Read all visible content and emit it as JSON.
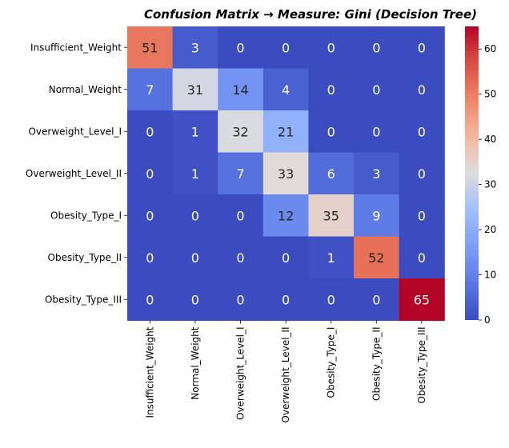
{
  "chart_data": {
    "type": "heatmap",
    "title": "Confusion Matrix → Measure: Gini (Decision Tree)",
    "rows": [
      "Insufficient_Weight",
      "Normal_Weight",
      "Overweight_Level_I",
      "Overweight_Level_II",
      "Obesity_Type_I",
      "Obesity_Type_II",
      "Obesity_Type_III"
    ],
    "columns": [
      "Insufficient_Weight",
      "Normal_Weight",
      "Overweight_Level_I",
      "Overweight_Level_II",
      "Obesity_Type_I",
      "Obesity_Type_II",
      "Obesity_Type_III"
    ],
    "values": [
      [
        51,
        3,
        0,
        0,
        0,
        0,
        0
      ],
      [
        7,
        31,
        14,
        4,
        0,
        0,
        0
      ],
      [
        0,
        1,
        32,
        21,
        0,
        0,
        0
      ],
      [
        0,
        1,
        7,
        33,
        6,
        3,
        0
      ],
      [
        0,
        0,
        0,
        12,
        35,
        9,
        0
      ],
      [
        0,
        0,
        0,
        0,
        1,
        52,
        0
      ],
      [
        0,
        0,
        0,
        0,
        0,
        0,
        65
      ]
    ],
    "colormap": "coolwarm",
    "vmin": 0,
    "vmax": 65,
    "colorbar_ticks": [
      0,
      10,
      20,
      30,
      40,
      50,
      60
    ],
    "annotations": true
  }
}
